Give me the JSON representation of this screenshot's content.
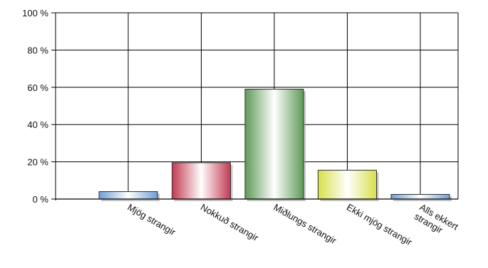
{
  "chart_data": {
    "type": "bar",
    "title": "",
    "xlabel": "",
    "ylabel": "",
    "ylim": [
      0,
      100
    ],
    "yticks": [
      {
        "value": 0,
        "label": "0 %"
      },
      {
        "value": 20,
        "label": "20 %"
      },
      {
        "value": 40,
        "label": "40 %"
      },
      {
        "value": 60,
        "label": "60 %"
      },
      {
        "value": 80,
        "label": "80 %"
      },
      {
        "value": 100,
        "label": "100 %"
      }
    ],
    "categories": [
      {
        "label": [
          "Mjög strangir"
        ],
        "value": 4,
        "color": "#6f9fd6"
      },
      {
        "label": [
          "Nokkuð strangir"
        ],
        "value": 19.5,
        "color": "#c33a52"
      },
      {
        "label": [
          "Miðlungs strangir"
        ],
        "value": 59,
        "color": "#5e9a57"
      },
      {
        "label": [
          "Ekki mjög strangir"
        ],
        "value": 15.5,
        "color": "#d8e04a"
      },
      {
        "label": [
          "Alls ekkert",
          "strangir"
        ],
        "value": 2.5,
        "color": "#6f9fd6"
      }
    ],
    "grid": true,
    "legend": "none"
  }
}
